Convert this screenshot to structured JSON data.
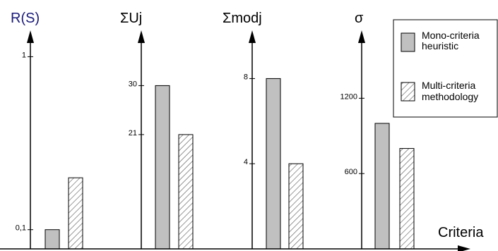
{
  "chart_data": {
    "type": "bar",
    "xlabel": "Criteria",
    "legend": {
      "placement": "top-right",
      "entries": [
        {
          "key": "mono",
          "lines": [
            "Mono-criteria",
            "heuristic"
          ],
          "fill": "#c0c0c0",
          "pattern": "solid"
        },
        {
          "key": "multi",
          "lines": [
            "Multi-criteria",
            "methodology"
          ],
          "fill": "#ffffff",
          "pattern": "hatched"
        }
      ]
    },
    "panels": [
      {
        "title": "R(S)",
        "title_color": "#1a1a7a",
        "ticks": [
          {
            "value": 0.1,
            "label": "0,1"
          },
          {
            "value": 1,
            "label": "1"
          }
        ],
        "ylim": [
          0,
          1.13
        ],
        "values": {
          "mono": 0.1,
          "multi": 0.37
        }
      },
      {
        "title": "ΣUj",
        "title_color": "#000000",
        "ticks": [
          {
            "value": 21,
            "label": "21"
          },
          {
            "value": 30,
            "label": "30"
          }
        ],
        "ylim": [
          0,
          39.9
        ],
        "values": {
          "mono": 30,
          "multi": 21
        }
      },
      {
        "title": "Σmodj",
        "title_color": "#000000",
        "ticks": [
          {
            "value": 4,
            "label": "4"
          },
          {
            "value": 8,
            "label": "8"
          }
        ],
        "ylim": [
          0,
          10.2
        ],
        "values": {
          "mono": 8,
          "multi": 4
        }
      },
      {
        "title": "σ",
        "title_color": "#000000",
        "ticks": [
          {
            "value": 600,
            "label": "600"
          },
          {
            "value": 1200,
            "label": "1200"
          }
        ],
        "ylim": [
          0,
          1730
        ],
        "values": {
          "mono": 1000,
          "multi": 800
        }
      }
    ]
  }
}
